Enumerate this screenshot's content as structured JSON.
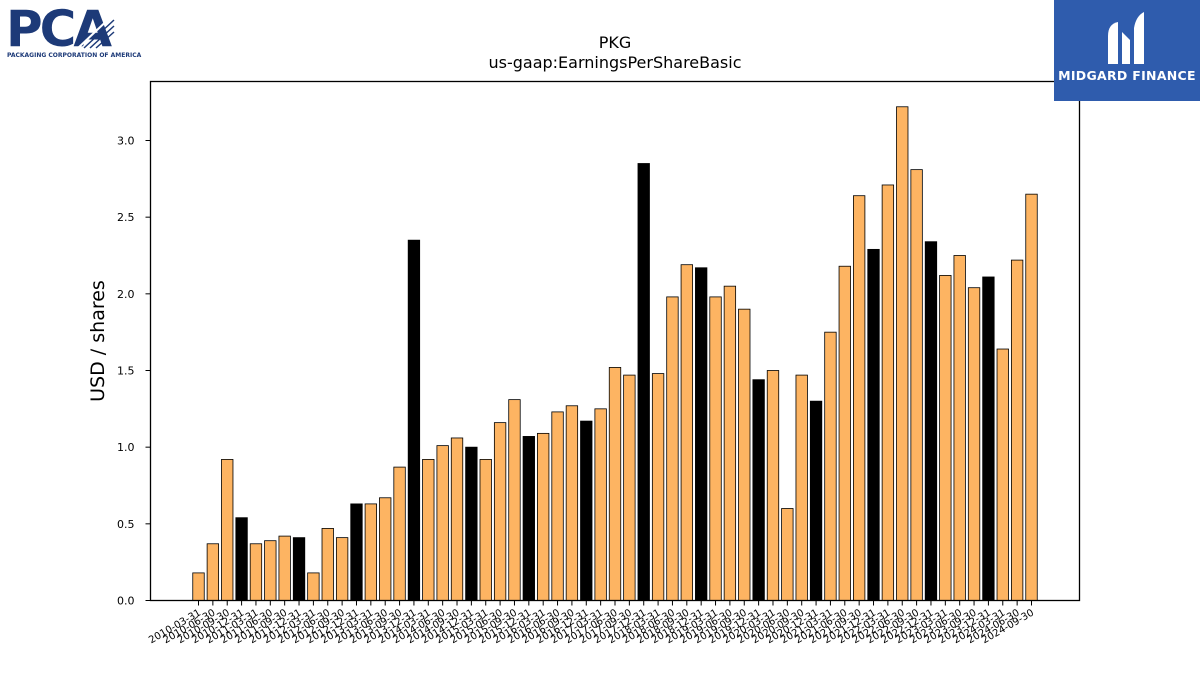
{
  "logos": {
    "left": {
      "text": "PCA",
      "subtitle": "PACKAGING CORPORATION OF AMERICA",
      "icon": "pca-logo"
    },
    "right": {
      "text": "MIDGARD FINANCE",
      "icon": "midgard-logo",
      "color": "#2f5cad"
    }
  },
  "chart_data": {
    "type": "bar",
    "title": "PKG",
    "subtitle": "us-gaap:EarningsPerShareBasic",
    "xlabel": "",
    "ylabel": "USD / shares",
    "ylim": [
      0,
      3.38
    ],
    "yticks": [
      0.0,
      0.5,
      1.0,
      1.5,
      2.0,
      2.5,
      3.0
    ],
    "ytick_labels": [
      "0.0",
      "0.5",
      "1.0",
      "1.5",
      "2.0",
      "2.5",
      "3.0"
    ],
    "grid": false,
    "colors": {
      "quarter": "#fdb462",
      "year_end": "#000000",
      "edge": "#000000"
    },
    "categories": [
      "2010-03-31",
      "2010-06-30",
      "2010-09-30",
      "2010-12-31",
      "2011-03-31",
      "2011-06-30",
      "2011-09-30",
      "2011-12-31",
      "2012-03-31",
      "2012-06-30",
      "2012-09-30",
      "2012-12-31",
      "2013-03-31",
      "2013-06-30",
      "2013-09-30",
      "2013-12-31",
      "2014-03-31",
      "2014-06-30",
      "2014-09-30",
      "2014-12-31",
      "2015-03-31",
      "2015-06-30",
      "2015-09-30",
      "2015-12-31",
      "2016-03-31",
      "2016-06-30",
      "2016-09-30",
      "2016-12-31",
      "2017-03-31",
      "2017-06-30",
      "2017-09-30",
      "2017-12-31",
      "2018-03-31",
      "2018-06-30",
      "2018-09-30",
      "2018-12-31",
      "2019-03-31",
      "2019-06-30",
      "2019-09-30",
      "2019-12-31",
      "2020-03-31",
      "2020-06-30",
      "2020-09-30",
      "2020-12-31",
      "2021-03-31",
      "2021-06-30",
      "2021-09-30",
      "2021-12-31",
      "2022-03-31",
      "2022-06-30",
      "2022-09-30",
      "2022-12-31",
      "2023-03-31",
      "2023-06-30",
      "2023-09-30",
      "2023-12-31",
      "2024-03-31",
      "2024-06-30",
      "2024-09-30"
    ],
    "values": [
      0.18,
      0.37,
      0.92,
      0.54,
      0.37,
      0.39,
      0.42,
      0.41,
      0.18,
      0.47,
      0.41,
      0.63,
      0.63,
      0.67,
      0.87,
      2.35,
      0.92,
      1.01,
      1.06,
      1.0,
      0.92,
      1.16,
      1.31,
      1.07,
      1.09,
      1.23,
      1.27,
      1.17,
      1.25,
      1.52,
      1.47,
      2.85,
      1.48,
      1.98,
      2.19,
      2.17,
      1.98,
      2.05,
      1.9,
      1.44,
      1.5,
      0.6,
      1.47,
      1.3,
      1.75,
      2.18,
      2.64,
      2.29,
      2.71,
      3.22,
      2.81,
      2.34,
      2.12,
      2.25,
      2.04,
      2.11,
      1.64,
      2.22,
      2.65
    ],
    "year_end": [
      false,
      false,
      false,
      true,
      false,
      false,
      false,
      true,
      false,
      false,
      false,
      true,
      false,
      false,
      false,
      true,
      false,
      false,
      false,
      true,
      false,
      false,
      false,
      true,
      false,
      false,
      false,
      true,
      false,
      false,
      false,
      true,
      false,
      false,
      false,
      true,
      false,
      false,
      false,
      true,
      false,
      false,
      false,
      true,
      false,
      false,
      false,
      true,
      false,
      false,
      false,
      true,
      false,
      false,
      false,
      true,
      false,
      false,
      false
    ]
  }
}
